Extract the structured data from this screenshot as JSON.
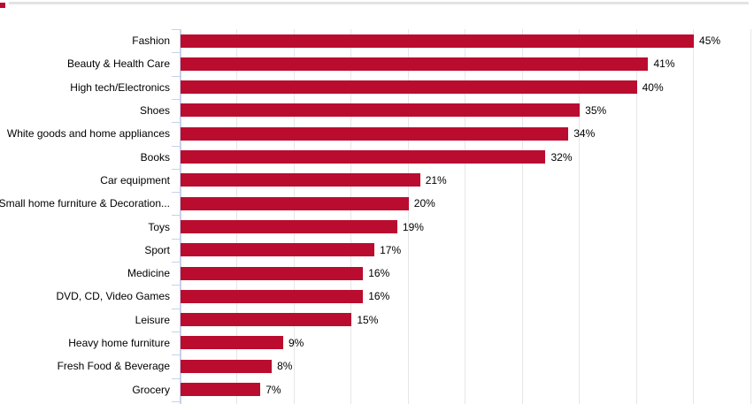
{
  "header": {
    "divider_color": "#e3e3e3",
    "corner_accent_color": "#BA0C2F"
  },
  "chart_data": {
    "type": "bar",
    "orientation": "horizontal",
    "title": "",
    "xlabel": "",
    "ylabel": "",
    "categories": [
      "Fashion",
      "Beauty & Health Care",
      "High tech/Electronics",
      "Shoes",
      "White goods and home appliances",
      "Books",
      "Car equipment",
      "Small home furniture & Decoration...",
      "Toys",
      "Sport",
      "Medicine",
      "DVD, CD, Video Games",
      "Leisure",
      "Heavy home furniture",
      "Fresh Food & Beverage",
      "Grocery"
    ],
    "values": [
      45,
      41,
      40,
      35,
      34,
      32,
      21,
      20,
      19,
      17,
      16,
      16,
      15,
      9,
      8,
      7
    ],
    "value_suffix": "%",
    "xlim": [
      0,
      50
    ],
    "gridline_step": 5,
    "grid": true,
    "legend": "none",
    "bar_color": "#BA0C2F",
    "axis_color": "#C6D2E8",
    "gridline_color": "#E6E6E6",
    "label_color": "#000000"
  }
}
